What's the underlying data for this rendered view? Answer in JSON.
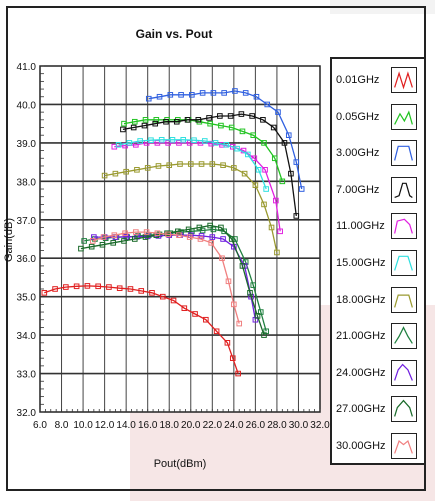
{
  "chart_data": {
    "type": "line",
    "title": "Gain vs. Pout",
    "xlabel": "Pout(dBm)",
    "ylabel": "Gain(dB)",
    "xlim": [
      6.0,
      32.0
    ],
    "ylim": [
      32.0,
      41.0
    ],
    "xticks": [
      "6.0",
      "8.0",
      "10.0",
      "12.0",
      "14.0",
      "16.0",
      "18.0",
      "20.0",
      "22.0",
      "24.0",
      "26.0",
      "28.0",
      "30.0",
      "32.0"
    ],
    "yticks": [
      "32.0",
      "33.0",
      "34.0",
      "35.0",
      "36.0",
      "37.0",
      "38.0",
      "39.0",
      "40.0",
      "41.0"
    ],
    "grid": true,
    "legend_position": "right",
    "series": [
      {
        "name": "0.01GHz",
        "color": "#e02020",
        "x": [
          6.4,
          7.4,
          8.4,
          9.4,
          10.4,
          11.4,
          12.4,
          13.4,
          14.4,
          15.4,
          16.4,
          17.4,
          18.4,
          19.4,
          20.4,
          21.4,
          22.4,
          23.4,
          23.9,
          24.4
        ],
        "y": [
          35.1,
          35.2,
          35.25,
          35.27,
          35.28,
          35.27,
          35.25,
          35.22,
          35.2,
          35.15,
          35.1,
          35.0,
          34.9,
          34.7,
          34.55,
          34.4,
          34.1,
          33.8,
          33.4,
          33.0
        ]
      },
      {
        "name": "0.05GHz",
        "color": "#22c322",
        "x": [
          13.8,
          14.8,
          15.8,
          16.8,
          17.8,
          18.8,
          19.8,
          20.8,
          21.8,
          22.8,
          23.8,
          24.8,
          25.8,
          26.8,
          27.8,
          28.5
        ],
        "y": [
          39.5,
          39.55,
          39.6,
          39.6,
          39.6,
          39.6,
          39.6,
          39.55,
          39.5,
          39.45,
          39.4,
          39.3,
          39.2,
          39.0,
          38.6,
          38.0
        ]
      },
      {
        "name": "3.00GHz",
        "color": "#3060e0",
        "x": [
          16.1,
          17.1,
          18.1,
          19.1,
          20.1,
          21.1,
          22.1,
          23.1,
          24.1,
          25.1,
          26.1,
          27.1,
          28.1,
          29.1,
          29.8,
          30.3
        ],
        "y": [
          40.15,
          40.2,
          40.25,
          40.25,
          40.25,
          40.3,
          40.3,
          40.3,
          40.35,
          40.3,
          40.2,
          40.0,
          39.8,
          39.2,
          38.5,
          37.8
        ]
      },
      {
        "name": "7.00GHz",
        "color": "#111111",
        "x": [
          13.7,
          14.7,
          15.7,
          16.7,
          17.7,
          18.7,
          19.7,
          20.7,
          21.7,
          22.7,
          23.7,
          24.7,
          25.7,
          26.7,
          27.7,
          28.7,
          29.3,
          29.8
        ],
        "y": [
          39.35,
          39.4,
          39.45,
          39.5,
          39.55,
          39.55,
          39.6,
          39.6,
          39.65,
          39.7,
          39.7,
          39.75,
          39.7,
          39.6,
          39.4,
          39.0,
          38.2,
          37.1
        ]
      },
      {
        "name": "11.00GHz",
        "color": "#e020e0",
        "x": [
          12.9,
          13.9,
          14.9,
          15.9,
          16.9,
          17.9,
          18.9,
          19.9,
          20.9,
          21.9,
          22.9,
          23.9,
          24.9,
          25.9,
          26.9,
          27.9,
          28.3
        ],
        "y": [
          38.9,
          38.93,
          38.95,
          39.0,
          39.0,
          39.0,
          39.0,
          39.0,
          39.0,
          38.98,
          38.95,
          38.9,
          38.8,
          38.6,
          38.3,
          37.5,
          36.7
        ]
      },
      {
        "name": "15.00GHz",
        "color": "#30e0e0",
        "x": [
          13.3,
          14.3,
          15.3,
          16.3,
          17.3,
          18.3,
          19.3,
          20.3,
          21.3,
          22.3,
          23.3,
          24.3,
          25.3,
          26.3,
          27.0
        ],
        "y": [
          38.95,
          39.0,
          39.05,
          39.07,
          39.08,
          39.08,
          39.08,
          39.07,
          39.05,
          39.0,
          38.95,
          38.85,
          38.7,
          38.3,
          37.8
        ]
      },
      {
        "name": "18.00GHz",
        "color": "#9a9a30",
        "x": [
          12.0,
          13.0,
          14.0,
          15.0,
          16.0,
          17.0,
          18.0,
          19.0,
          20.0,
          21.0,
          22.0,
          23.0,
          24.0,
          25.0,
          26.0,
          26.8,
          27.5,
          28.0
        ],
        "y": [
          38.15,
          38.2,
          38.25,
          38.3,
          38.35,
          38.4,
          38.42,
          38.45,
          38.45,
          38.45,
          38.45,
          38.42,
          38.35,
          38.2,
          37.9,
          37.4,
          36.8,
          36.15
        ]
      },
      {
        "name": "21.00GHz",
        "color": "#208040",
        "x": [
          10.1,
          11.1,
          12.1,
          13.1,
          14.1,
          15.1,
          16.1,
          17.1,
          18.1,
          19.1,
          20.1,
          21.1,
          22.1,
          23.1,
          24.1,
          25.1,
          25.8,
          26.5,
          27.0
        ],
        "y": [
          36.45,
          36.5,
          36.52,
          36.55,
          36.55,
          36.58,
          36.6,
          36.62,
          36.65,
          36.68,
          36.7,
          36.72,
          36.75,
          36.7,
          36.5,
          35.9,
          35.3,
          34.6,
          34.1
        ]
      },
      {
        "name": "24.00GHz",
        "color": "#7020e0",
        "x": [
          11.0,
          12.0,
          13.0,
          14.0,
          15.0,
          16.0,
          17.0,
          18.0,
          19.0,
          20.0,
          21.0,
          22.0,
          23.0,
          24.0,
          25.0,
          25.6,
          26.0
        ],
        "y": [
          36.55,
          36.55,
          36.55,
          36.56,
          36.56,
          36.57,
          36.58,
          36.6,
          36.6,
          36.6,
          36.58,
          36.55,
          36.5,
          36.3,
          35.8,
          35.0,
          34.4
        ]
      },
      {
        "name": "27.00GHz",
        "color": "#1a6a2a",
        "x": [
          9.8,
          10.8,
          11.8,
          12.8,
          13.8,
          14.8,
          15.8,
          16.8,
          17.8,
          18.8,
          19.8,
          20.8,
          21.8,
          22.8,
          23.8,
          24.8,
          25.5,
          26.2,
          26.8
        ],
        "y": [
          36.25,
          36.3,
          36.35,
          36.4,
          36.45,
          36.5,
          36.55,
          36.6,
          36.65,
          36.7,
          36.75,
          36.8,
          36.85,
          36.8,
          36.5,
          35.8,
          35.1,
          34.5,
          34.0
        ]
      },
      {
        "name": "30.00GHz",
        "color": "#f08080",
        "x": [
          10.9,
          11.9,
          12.9,
          13.9,
          14.9,
          15.9,
          16.9,
          17.9,
          18.9,
          19.9,
          20.9,
          21.9,
          22.9,
          23.5,
          24.0,
          24.5
        ],
        "y": [
          36.45,
          36.55,
          36.6,
          36.65,
          36.68,
          36.68,
          36.65,
          36.62,
          36.6,
          36.55,
          36.5,
          36.4,
          36.0,
          35.4,
          34.8,
          34.3
        ]
      }
    ]
  }
}
